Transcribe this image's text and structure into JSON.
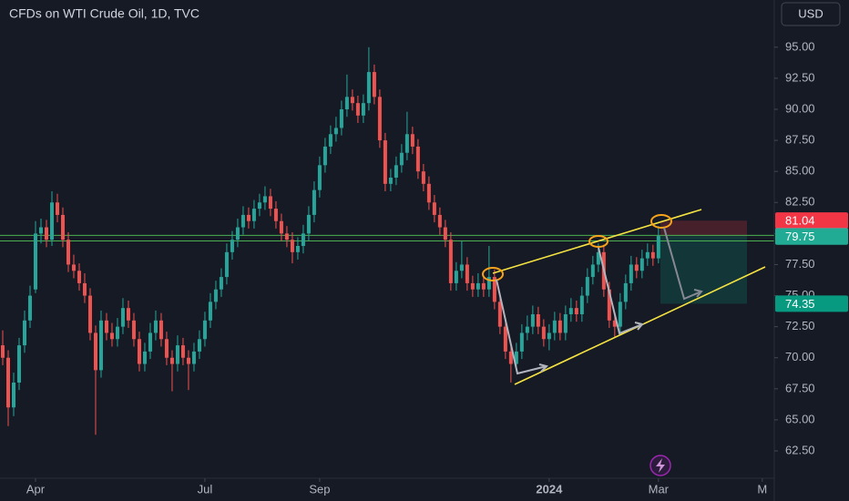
{
  "chart_data": {
    "type": "candlestick",
    "title": "CFDs on WTI Crude Oil, 1D, TVC",
    "currency": "USD",
    "up_color": "#26a69a",
    "down_color": "#ef5350",
    "ohlc": [
      [
        71,
        72.2,
        69.4,
        70
      ],
      [
        70,
        70.6,
        64.5,
        66
      ],
      [
        66,
        68.8,
        65.3,
        68
      ],
      [
        68,
        71.6,
        67.4,
        71
      ],
      [
        71,
        73.8,
        70.4,
        73
      ],
      [
        73,
        75.8,
        72.4,
        75
      ],
      [
        75.5,
        81,
        75.2,
        80
      ],
      [
        80,
        81.2,
        79.2,
        80.5
      ],
      [
        80.5,
        81.1,
        78.9,
        79.5
      ],
      [
        79.5,
        83.4,
        79,
        82.5
      ],
      [
        82.5,
        83.2,
        80.9,
        81.5
      ],
      [
        81.5,
        82.1,
        78.9,
        79.5
      ],
      [
        79.5,
        80.1,
        76.9,
        77.5
      ],
      [
        77.5,
        78.3,
        76.4,
        77
      ],
      [
        77,
        77.6,
        75.4,
        76
      ],
      [
        76,
        76.8,
        74.4,
        75
      ],
      [
        75,
        75.6,
        71.4,
        72
      ],
      [
        72,
        72.6,
        63.8,
        69
      ],
      [
        69,
        73.8,
        68.4,
        73
      ],
      [
        73,
        73.6,
        71.4,
        72
      ],
      [
        72,
        72.8,
        70.9,
        71.5
      ],
      [
        71.5,
        73.2,
        70.9,
        72.5
      ],
      [
        72.5,
        74.8,
        71.9,
        74
      ],
      [
        74,
        74.6,
        72.4,
        73
      ],
      [
        73,
        73.6,
        70.9,
        71.5
      ],
      [
        71.5,
        72.1,
        68.9,
        69.5
      ],
      [
        69.5,
        71.2,
        68.9,
        70.5
      ],
      [
        70.5,
        72.8,
        69.9,
        72
      ],
      [
        72,
        73.8,
        71.4,
        73
      ],
      [
        73,
        73.6,
        70.9,
        71.5
      ],
      [
        71.5,
        72.1,
        69.4,
        70
      ],
      [
        70,
        70.6,
        67.3,
        69.5
      ],
      [
        69.5,
        71.8,
        68.9,
        71
      ],
      [
        71,
        71.6,
        69.4,
        70
      ],
      [
        70,
        70.6,
        67.4,
        69.5
      ],
      [
        69.5,
        71.2,
        68.9,
        70.5
      ],
      [
        70.5,
        72.2,
        69.9,
        71.5
      ],
      [
        71.5,
        73.7,
        70.9,
        73
      ],
      [
        73,
        75.2,
        72.4,
        74.5
      ],
      [
        74.5,
        76.2,
        73.9,
        75.5
      ],
      [
        75.5,
        77.2,
        74.9,
        76.5
      ],
      [
        76.5,
        79.2,
        75.9,
        78.5
      ],
      [
        78.5,
        80.2,
        77.9,
        79.5
      ],
      [
        79.5,
        81.2,
        78.9,
        80.5
      ],
      [
        80.5,
        82.2,
        79.9,
        81.5
      ],
      [
        81.5,
        82.1,
        80.4,
        81
      ],
      [
        81,
        82.7,
        80.4,
        82
      ],
      [
        82,
        83.2,
        81.4,
        82.5
      ],
      [
        82.5,
        83.8,
        81.9,
        83
      ],
      [
        83,
        83.6,
        81.4,
        82
      ],
      [
        82,
        82.6,
        80.4,
        81
      ],
      [
        81,
        81.6,
        79.4,
        80
      ],
      [
        80,
        80.6,
        78.9,
        79.5
      ],
      [
        79.5,
        80.1,
        77.6,
        78.5
      ],
      [
        78.5,
        79.7,
        77.9,
        79
      ],
      [
        79,
        80.7,
        78.4,
        80
      ],
      [
        80,
        82.2,
        79.4,
        81.5
      ],
      [
        81.5,
        84.2,
        80.9,
        83.5
      ],
      [
        83.5,
        86.2,
        82.9,
        85.5
      ],
      [
        85.5,
        87.7,
        84.9,
        87
      ],
      [
        87,
        88.7,
        86.4,
        88
      ],
      [
        88,
        89.4,
        87.4,
        88.5
      ],
      [
        88.5,
        90.7,
        87.9,
        90
      ],
      [
        90,
        92.8,
        89.4,
        91
      ],
      [
        91,
        91.6,
        89.9,
        90.5
      ],
      [
        90.5,
        91.1,
        88.9,
        89.5
      ],
      [
        89.5,
        91.2,
        88.9,
        90.5
      ],
      [
        90.5,
        95,
        89.9,
        93
      ],
      [
        93,
        93.6,
        90.4,
        91
      ],
      [
        91,
        91.6,
        86.9,
        87.5
      ],
      [
        87.5,
        88.1,
        83.4,
        84
      ],
      [
        84,
        85.2,
        83.4,
        84.5
      ],
      [
        84.5,
        86.2,
        83.9,
        85.5
      ],
      [
        85.5,
        87.2,
        84.9,
        86.5
      ],
      [
        86.5,
        89.8,
        85.9,
        88
      ],
      [
        88,
        88.6,
        86.4,
        87
      ],
      [
        87,
        87.6,
        84.4,
        85
      ],
      [
        85,
        85.6,
        83.4,
        84
      ],
      [
        84,
        84.6,
        81.9,
        82.5
      ],
      [
        82.5,
        83.1,
        80.9,
        81.5
      ],
      [
        81.5,
        82.1,
        79.9,
        80.5
      ],
      [
        80.5,
        81.1,
        78.9,
        79.5
      ],
      [
        79.5,
        80.1,
        75.4,
        76
      ],
      [
        76,
        77.7,
        75.4,
        77
      ],
      [
        77,
        79.4,
        76.4,
        77.5
      ],
      [
        77.5,
        78.1,
        75.4,
        76
      ],
      [
        76,
        76.6,
        74.9,
        75.5
      ],
      [
        75.5,
        76.8,
        74.9,
        76
      ],
      [
        76,
        76.6,
        74.9,
        75.5
      ],
      [
        75.5,
        79,
        74.9,
        76.5
      ],
      [
        76.5,
        77.1,
        73.9,
        74.5
      ],
      [
        74.5,
        75.1,
        71.9,
        72.5
      ],
      [
        72.5,
        73.1,
        69.9,
        70.5
      ],
      [
        70.5,
        71.1,
        68,
        69.5
      ],
      [
        69.5,
        71.2,
        68.9,
        70.5
      ],
      [
        70.5,
        72.7,
        69.9,
        72
      ],
      [
        72,
        73.4,
        71.4,
        72.5
      ],
      [
        72.5,
        74.2,
        71.9,
        73.5
      ],
      [
        73.5,
        74.1,
        71.9,
        72.5
      ],
      [
        72.5,
        73.1,
        70.9,
        71.5
      ],
      [
        71.5,
        72.7,
        70.6,
        72
      ],
      [
        72,
        73.7,
        71.4,
        73
      ],
      [
        73,
        73.6,
        71.4,
        72
      ],
      [
        72,
        74.2,
        71.4,
        73.5
      ],
      [
        73.5,
        74.8,
        72.9,
        74
      ],
      [
        74,
        74.6,
        72.9,
        73.5
      ],
      [
        73.5,
        75.7,
        72.9,
        75
      ],
      [
        75,
        77.2,
        74.4,
        76.5
      ],
      [
        76.5,
        78.2,
        75.9,
        77.5
      ],
      [
        77.5,
        79.2,
        76.9,
        78.5
      ],
      [
        78.5,
        79.1,
        74.9,
        75.5
      ],
      [
        75.5,
        76.1,
        72.4,
        73
      ],
      [
        73,
        73.6,
        71.6,
        72.5
      ],
      [
        72.5,
        75.2,
        71.9,
        74.5
      ],
      [
        74.5,
        76.7,
        73.9,
        76
      ],
      [
        76,
        78.2,
        75.4,
        77.5
      ],
      [
        77.5,
        78.1,
        76.4,
        77
      ],
      [
        77,
        78.7,
        76.4,
        78
      ],
      [
        78,
        79.2,
        77.4,
        78.5
      ],
      [
        78.5,
        79.1,
        77.4,
        78
      ],
      [
        78,
        80.6,
        77.6,
        79.8
      ]
    ],
    "xlim": [
      -0.5,
      141.2
    ],
    "xticks": [
      {
        "value": 6,
        "label": "Apr"
      },
      {
        "value": 37,
        "label": "Jul"
      },
      {
        "value": 58,
        "label": "Sep"
      },
      {
        "value": 100,
        "label": "2024"
      },
      {
        "value": 120,
        "label": "Mar"
      },
      {
        "value": 139,
        "label": "M"
      }
    ],
    "ylim": [
      60.3,
      98.8
    ],
    "yticks": [
      {
        "value": 95,
        "label": "95.00"
      },
      {
        "value": 92.5,
        "label": "92.50"
      },
      {
        "value": 90,
        "label": "90.00"
      },
      {
        "value": 87.5,
        "label": "87.50"
      },
      {
        "value": 85,
        "label": "85.00"
      },
      {
        "value": 82.5,
        "label": "82.50"
      },
      {
        "value": 80,
        "label": "80.00"
      },
      {
        "value": 77.5,
        "label": "77.50"
      },
      {
        "value": 75,
        "label": "75.00"
      },
      {
        "value": 72.5,
        "label": "72.50"
      },
      {
        "value": 70,
        "label": "70.00"
      },
      {
        "value": 67.5,
        "label": "67.50"
      },
      {
        "value": 65,
        "label": "65.00"
      },
      {
        "value": 62.5,
        "label": "62.50"
      }
    ],
    "hlines": [
      79.85,
      79.4
    ],
    "hline_color": "#4caf50",
    "price_labels": [
      {
        "value": 81.04,
        "label": "81.04",
        "color": "#f23645"
      },
      {
        "value": 79.8,
        "label": "79.80",
        "color": "#868993"
      },
      {
        "value": 79.75,
        "label": "79.75",
        "color": "#22ab94"
      },
      {
        "value": 74.35,
        "label": "74.35",
        "color": "#089981"
      }
    ]
  }
}
